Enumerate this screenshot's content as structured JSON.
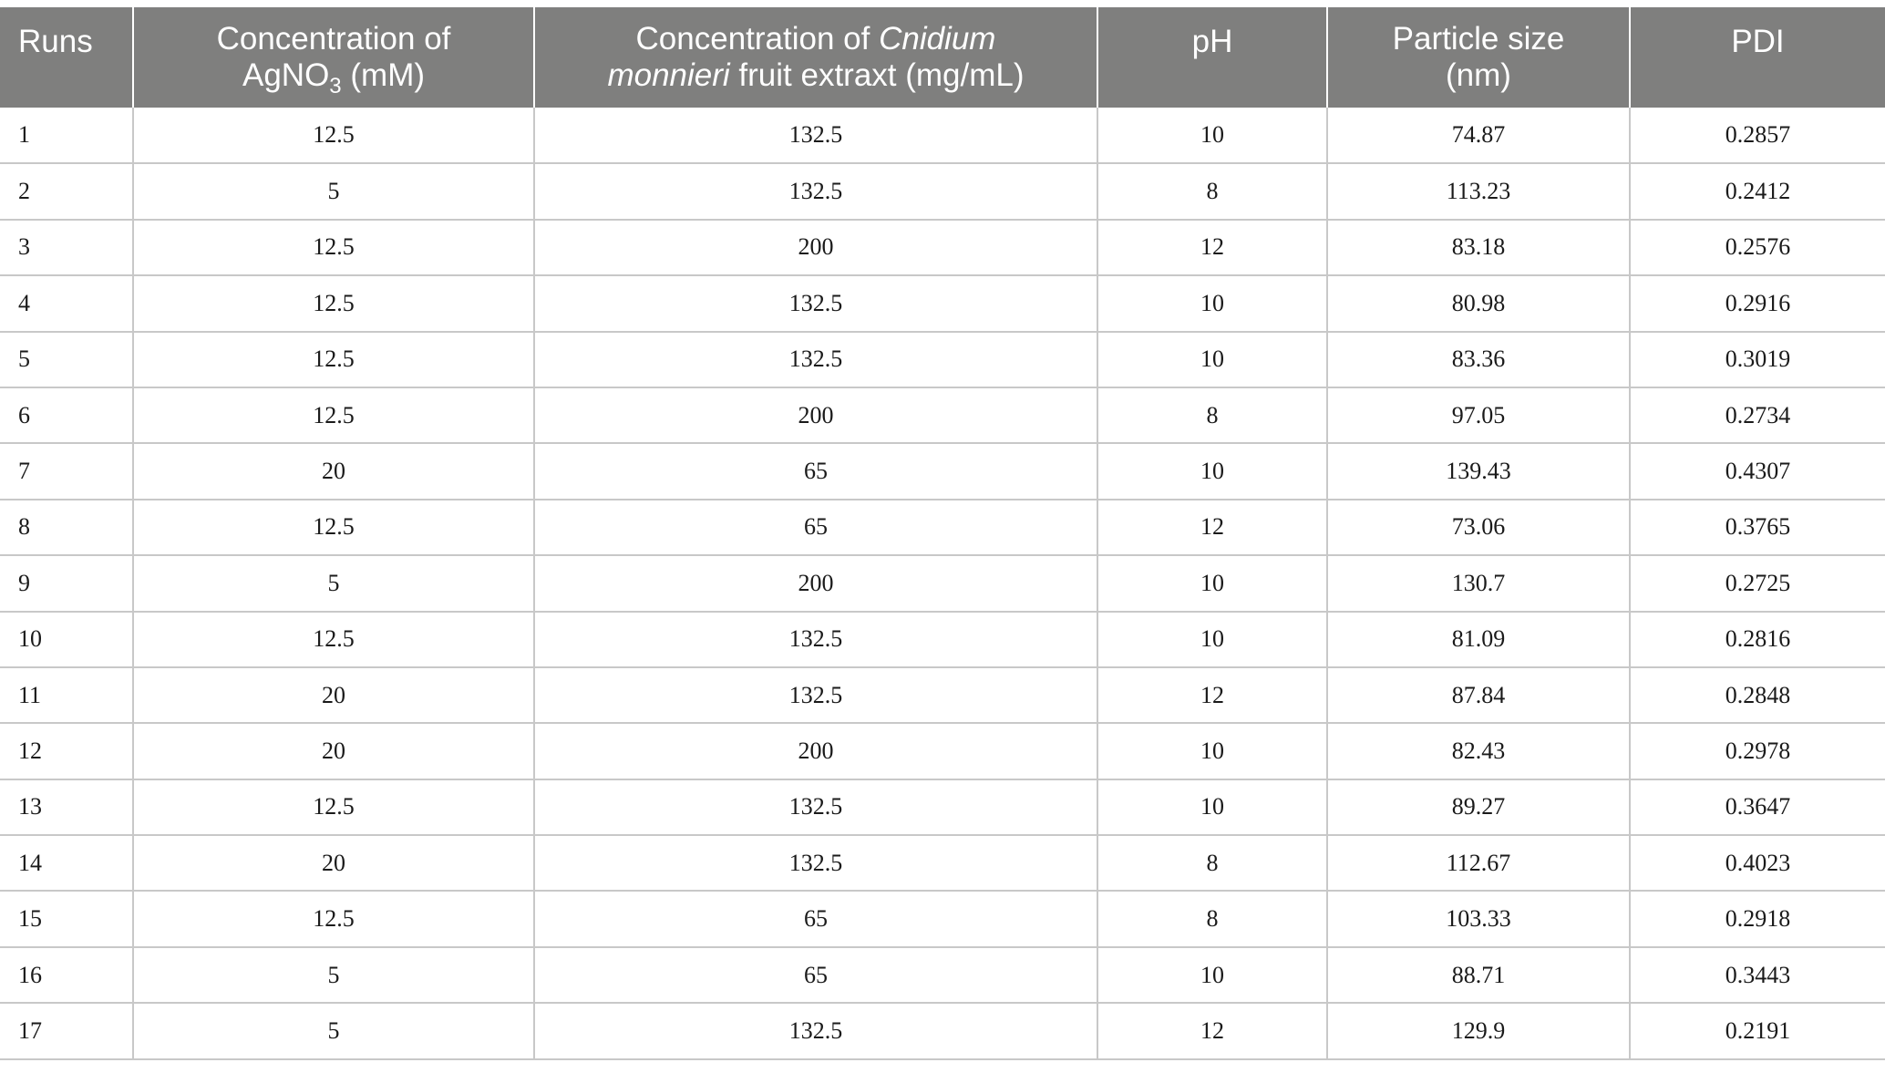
{
  "table": {
    "headers": {
      "runs": "Runs",
      "agno3_prefix": "Concentration of",
      "agno3_chem": "AgNO",
      "agno3_sub": "3",
      "agno3_unit": "(mM)",
      "extract_prefix": "Concentration of",
      "extract_species_genus": "Cnidium",
      "extract_species_epithet": "monnieri",
      "extract_suffix": "fruit extraxt (mg/mL)",
      "ph": "pH",
      "particle_size_line1": "Particle size",
      "particle_size_line2": "(nm)",
      "pdi": "PDI"
    },
    "rows": [
      {
        "run": "1",
        "agno3": "12.5",
        "extract": "132.5",
        "ph": "10",
        "size": "74.87",
        "pdi": "0.2857"
      },
      {
        "run": "2",
        "agno3": "5",
        "extract": "132.5",
        "ph": "8",
        "size": "113.23",
        "pdi": "0.2412"
      },
      {
        "run": "3",
        "agno3": "12.5",
        "extract": "200",
        "ph": "12",
        "size": "83.18",
        "pdi": "0.2576"
      },
      {
        "run": "4",
        "agno3": "12.5",
        "extract": "132.5",
        "ph": "10",
        "size": "80.98",
        "pdi": "0.2916"
      },
      {
        "run": "5",
        "agno3": "12.5",
        "extract": "132.5",
        "ph": "10",
        "size": "83.36",
        "pdi": "0.3019"
      },
      {
        "run": "6",
        "agno3": "12.5",
        "extract": "200",
        "ph": "8",
        "size": "97.05",
        "pdi": "0.2734"
      },
      {
        "run": "7",
        "agno3": "20",
        "extract": "65",
        "ph": "10",
        "size": "139.43",
        "pdi": "0.4307"
      },
      {
        "run": "8",
        "agno3": "12.5",
        "extract": "65",
        "ph": "12",
        "size": "73.06",
        "pdi": "0.3765"
      },
      {
        "run": "9",
        "agno3": "5",
        "extract": "200",
        "ph": "10",
        "size": "130.7",
        "pdi": "0.2725"
      },
      {
        "run": "10",
        "agno3": "12.5",
        "extract": "132.5",
        "ph": "10",
        "size": "81.09",
        "pdi": "0.2816"
      },
      {
        "run": "11",
        "agno3": "20",
        "extract": "132.5",
        "ph": "12",
        "size": "87.84",
        "pdi": "0.2848"
      },
      {
        "run": "12",
        "agno3": "20",
        "extract": "200",
        "ph": "10",
        "size": "82.43",
        "pdi": "0.2978"
      },
      {
        "run": "13",
        "agno3": "12.5",
        "extract": "132.5",
        "ph": "10",
        "size": "89.27",
        "pdi": "0.3647"
      },
      {
        "run": "14",
        "agno3": "20",
        "extract": "132.5",
        "ph": "8",
        "size": "112.67",
        "pdi": "0.4023"
      },
      {
        "run": "15",
        "agno3": "12.5",
        "extract": "65",
        "ph": "8",
        "size": "103.33",
        "pdi": "0.2918"
      },
      {
        "run": "16",
        "agno3": "5",
        "extract": "65",
        "ph": "10",
        "size": "88.71",
        "pdi": "0.3443"
      },
      {
        "run": "17",
        "agno3": "5",
        "extract": "132.5",
        "ph": "12",
        "size": "129.9",
        "pdi": "0.2191"
      }
    ],
    "colors": {
      "header_bg": "#7f7f7e",
      "header_text": "#ffffff",
      "grid_line": "#c8c8c8"
    }
  }
}
